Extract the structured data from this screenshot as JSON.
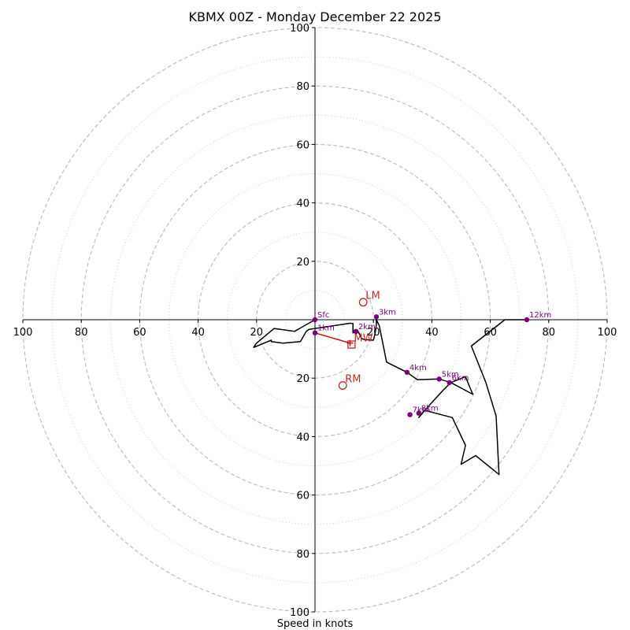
{
  "chart_data": {
    "type": "hodograph",
    "title": "KBMX 00Z - Monday December 22 2025",
    "xlabel": "Speed in knots",
    "range": [
      -100,
      100
    ],
    "major_rings": [
      20,
      40,
      60,
      80,
      100
    ],
    "minor_rings": [
      10,
      30,
      50,
      70,
      90
    ],
    "x_ticks": [
      {
        "v": -100,
        "label": "100"
      },
      {
        "v": -80,
        "label": "80"
      },
      {
        "v": -60,
        "label": "60"
      },
      {
        "v": -40,
        "label": "40"
      },
      {
        "v": -20,
        "label": "20"
      },
      {
        "v": 20,
        "label": "20"
      },
      {
        "v": 40,
        "label": "40"
      },
      {
        "v": 60,
        "label": "60"
      },
      {
        "v": 80,
        "label": "80"
      },
      {
        "v": 100,
        "label": "100"
      }
    ],
    "y_ticks": [
      {
        "v": 100,
        "label": "100"
      },
      {
        "v": 80,
        "label": "80"
      },
      {
        "v": 60,
        "label": "60"
      },
      {
        "v": 40,
        "label": "40"
      },
      {
        "v": 20,
        "label": "20"
      },
      {
        "v": -20,
        "label": "20"
      },
      {
        "v": -40,
        "label": "40"
      },
      {
        "v": -60,
        "label": "60"
      },
      {
        "v": -80,
        "label": "80"
      },
      {
        "v": -100,
        "label": "100"
      }
    ],
    "trace": [
      [
        0,
        0
      ],
      [
        -7,
        -4
      ],
      [
        -14,
        -3
      ],
      [
        -20,
        -8
      ],
      [
        -21,
        -9.5
      ],
      [
        -15,
        -7
      ],
      [
        -15,
        -7.5
      ],
      [
        -11,
        -8
      ],
      [
        -5,
        -7.5
      ],
      [
        -3,
        -4
      ],
      [
        -2,
        -3.3
      ],
      [
        12,
        -1.2
      ],
      [
        13,
        -1.3
      ],
      [
        13,
        -4.5
      ],
      [
        14.5,
        -3.5
      ],
      [
        16,
        -6.5
      ],
      [
        17,
        -6.8
      ],
      [
        20,
        -7
      ],
      [
        20.5,
        -5
      ],
      [
        21,
        -1.8
      ],
      [
        21,
        0
      ],
      [
        22,
        -2
      ],
      [
        24.5,
        -14.5
      ],
      [
        31.5,
        -18
      ],
      [
        35,
        -20.5
      ],
      [
        42.5,
        -20.3
      ],
      [
        46.5,
        -21.5
      ],
      [
        51.5,
        -19.5
      ],
      [
        54,
        -25.5
      ],
      [
        46.5,
        -21.5
      ],
      [
        44,
        -24
      ],
      [
        38.5,
        -30
      ],
      [
        35.5,
        -33.5
      ],
      [
        37.5,
        -31
      ],
      [
        47,
        -33.5
      ],
      [
        51.5,
        -43
      ],
      [
        50,
        -49.5
      ],
      [
        55,
        -46.5
      ],
      [
        63,
        -53
      ],
      [
        62,
        -33
      ],
      [
        58.5,
        -21.5
      ],
      [
        53.5,
        -9
      ],
      [
        65,
        0
      ],
      [
        72.5,
        0
      ]
    ],
    "points": [
      {
        "label": "Sfc",
        "u": 0,
        "v": 0
      },
      {
        "label": "1km",
        "u": 0,
        "v": -4.5
      },
      {
        "label": "2km",
        "u": 14,
        "v": -4
      },
      {
        "label": "3km",
        "u": 21,
        "v": 1
      },
      {
        "label": "4km",
        "u": 31.5,
        "v": -18
      },
      {
        "label": "5km",
        "u": 42.5,
        "v": -20.3
      },
      {
        "label": "6km",
        "u": 46,
        "v": -21.5
      },
      {
        "label": "7km",
        "u": 32.5,
        "v": -32.5
      },
      {
        "label": "8km",
        "u": 35.5,
        "v": -32
      },
      {
        "label": "12km",
        "u": 72.5,
        "v": 0
      }
    ],
    "markers": [
      {
        "label": "LM",
        "u": 16.5,
        "v": 6,
        "shape": "circle"
      },
      {
        "label": "RM",
        "u": 9.5,
        "v": -22.5,
        "shape": "circle"
      },
      {
        "label": "MW",
        "u": 12.5,
        "v": -8.5,
        "shape": "square"
      }
    ],
    "shear_vector": {
      "from": [
        0,
        -4.5
      ],
      "to": [
        12,
        -8
      ],
      "color": "#e00000"
    },
    "colors": {
      "trace": "#000000",
      "points": "#7a007a",
      "markers": "#c0282a",
      "grid": "#bbbbbb",
      "shear": "#e00000"
    }
  }
}
